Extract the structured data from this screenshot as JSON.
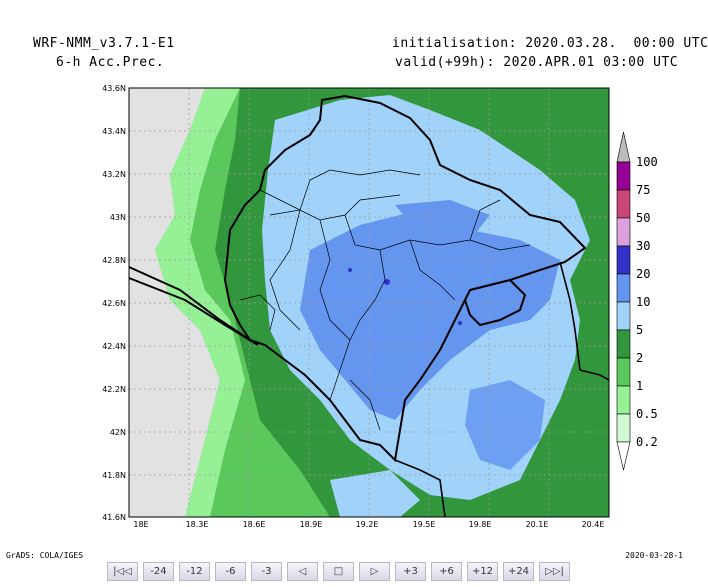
{
  "header": {
    "model": "WRF-NMM_v3.7.1-E1",
    "field": "6-h Acc.Prec.",
    "init": "initialisation: 2020.03.28.  00:00 UTC",
    "valid": "valid(+99h): 2020.APR.01 03:00 UTC"
  },
  "map": {
    "lat_labels": [
      "43.6N",
      "43.4N",
      "43.2N",
      "43N",
      "42.8N",
      "42.6N",
      "42.4N",
      "42.2N",
      "42N",
      "41.8N",
      "41.6N"
    ],
    "lon_labels": [
      "18E",
      "18.3E",
      "18.6E",
      "18.9E",
      "19.2E",
      "19.5E",
      "19.8E",
      "20.1E",
      "20.4E"
    ]
  },
  "colorbar": {
    "labels": [
      "100",
      "75",
      "50",
      "30",
      "20",
      "10",
      "5",
      "2",
      "1",
      "0.5",
      "0.2"
    ],
    "colors": [
      "#960096",
      "#c84678",
      "#dca0dc",
      "#3232c8",
      "#6496f0",
      "#a0d2fa",
      "#32963c",
      "#5ac85a",
      "#96f096",
      "#d2fad2"
    ]
  },
  "footer": {
    "left": "GrADS: COLA/IGES",
    "right": "2020-03-28-1"
  },
  "nav": [
    "|◁◁",
    "-24",
    "-12",
    "-6",
    "-3",
    "◁",
    "□",
    "▷",
    "+3",
    "+6",
    "+12",
    "+24",
    "▷▷|"
  ]
}
